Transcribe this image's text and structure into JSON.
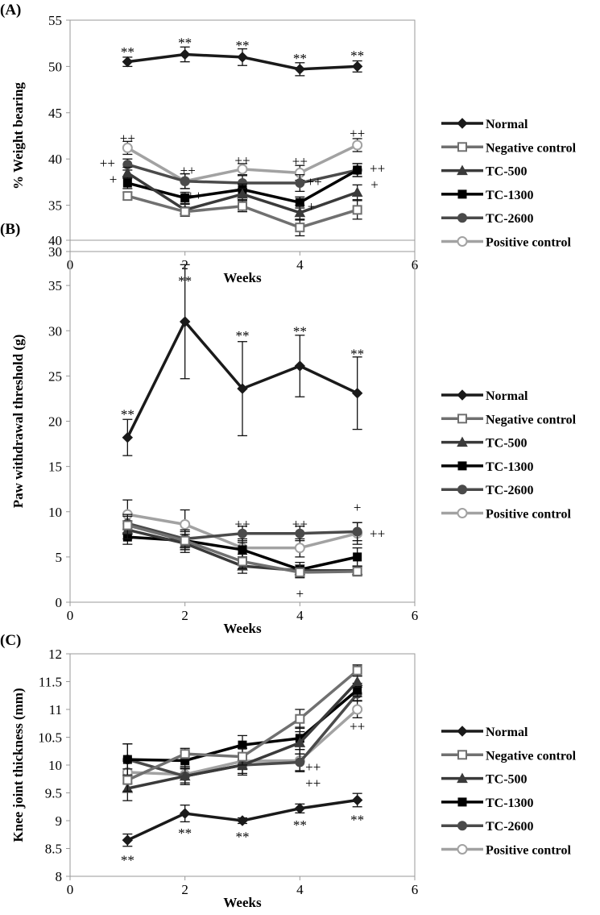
{
  "chart_data": [
    {
      "type": "line",
      "panel_label": "(A)",
      "xlabel": "Weeks",
      "ylabel": "% Weight bearing",
      "xlim": [
        0,
        6
      ],
      "xticks": [
        0,
        2,
        4,
        6
      ],
      "ylim": [
        30,
        55
      ],
      "yticks": [
        30,
        35,
        40,
        45,
        50,
        55
      ],
      "x": [
        1,
        2,
        3,
        4,
        5
      ],
      "legend_position": "right",
      "series": [
        {
          "name": "Normal",
          "values": [
            50.5,
            51.3,
            51.0,
            49.7,
            50.0
          ],
          "errors": [
            0.5,
            0.8,
            0.9,
            0.7,
            0.6
          ]
        },
        {
          "name": "Negative control",
          "values": [
            36.0,
            34.3,
            34.9,
            32.6,
            34.5
          ],
          "errors": [
            0.4,
            0.5,
            0.6,
            0.9,
            1.0
          ]
        },
        {
          "name": "TC-500",
          "values": [
            38.5,
            34.5,
            36.2,
            34.2,
            36.4
          ],
          "errors": [
            0.6,
            0.6,
            0.6,
            0.8,
            0.8
          ]
        },
        {
          "name": "TC-1300",
          "values": [
            37.4,
            35.8,
            36.7,
            35.3,
            38.8
          ],
          "errors": [
            0.6,
            0.6,
            0.6,
            0.6,
            0.7
          ]
        },
        {
          "name": "TC-2600",
          "values": [
            39.4,
            37.6,
            37.4,
            37.4,
            38.8
          ],
          "errors": [
            0.6,
            0.8,
            0.8,
            0.9,
            0.7
          ]
        },
        {
          "name": "Positive control",
          "values": [
            41.2,
            37.6,
            38.9,
            38.5,
            41.5
          ],
          "errors": [
            0.7,
            0.8,
            0.6,
            0.8,
            0.7
          ]
        }
      ],
      "annotations": [
        {
          "text": "**",
          "x": 1,
          "y": 51.6
        },
        {
          "text": "**",
          "x": 2,
          "y": 52.6
        },
        {
          "text": "**",
          "x": 3,
          "y": 52.3
        },
        {
          "text": "**",
          "x": 4,
          "y": 50.9
        },
        {
          "text": "**",
          "x": 5,
          "y": 51.2
        },
        {
          "text": "++",
          "x": 1,
          "y": 42.3
        },
        {
          "text": "++",
          "x": 0.65,
          "y": 39.6
        },
        {
          "text": "+",
          "x": 0.75,
          "y": 38.2
        },
        {
          "text": "++",
          "x": 2.05,
          "y": 38.8
        },
        {
          "text": "+++",
          "x": 2.1,
          "y": 36.1
        },
        {
          "text": "++",
          "x": 3,
          "y": 39.9
        },
        {
          "text": "++",
          "x": 4,
          "y": 39.8
        },
        {
          "text": "++",
          "x": 4.25,
          "y": 37.6
        },
        {
          "text": "+",
          "x": 4.2,
          "y": 34.9
        },
        {
          "text": "++",
          "x": 5,
          "y": 42.8
        },
        {
          "text": "++",
          "x": 5.35,
          "y": 39.0
        },
        {
          "text": "+",
          "x": 5.3,
          "y": 37.4
        }
      ]
    },
    {
      "type": "line",
      "panel_label": "(B)",
      "xlabel": "Weeks",
      "ylabel": "Paw withdrawal threshold (g)",
      "xlim": [
        0,
        6
      ],
      "xticks": [
        0,
        2,
        4,
        6
      ],
      "ylim": [
        0,
        40
      ],
      "yticks": [
        0,
        5,
        10,
        15,
        20,
        25,
        30,
        35,
        40
      ],
      "x": [
        1,
        2,
        3,
        4,
        5
      ],
      "legend_position": "right",
      "series": [
        {
          "name": "Normal",
          "values": [
            18.2,
            31.0,
            23.6,
            26.1,
            23.1
          ],
          "errors": [
            2.0,
            6.3,
            5.2,
            3.4,
            4.0
          ]
        },
        {
          "name": "Negative control",
          "values": [
            8.5,
            6.8,
            4.5,
            3.3,
            3.4
          ],
          "errors": [
            1.0,
            1.0,
            0.8,
            0.6,
            0.5
          ]
        },
        {
          "name": "TC-500",
          "values": [
            8.0,
            6.5,
            4.0,
            3.5,
            3.5
          ],
          "errors": [
            1.0,
            1.0,
            0.8,
            0.6,
            0.5
          ]
        },
        {
          "name": "TC-1300",
          "values": [
            7.2,
            6.8,
            5.8,
            3.6,
            5.0
          ],
          "errors": [
            0.8,
            1.0,
            0.8,
            0.8,
            1.0
          ]
        },
        {
          "name": "TC-2600",
          "values": [
            8.7,
            7.0,
            7.6,
            7.6,
            7.8
          ],
          "errors": [
            1.0,
            1.0,
            0.8,
            0.8,
            1.0
          ]
        },
        {
          "name": "Positive control",
          "values": [
            9.7,
            8.6,
            6.0,
            6.0,
            7.6
          ],
          "errors": [
            1.6,
            1.6,
            1.0,
            1.0,
            1.2
          ]
        }
      ],
      "annotations": [
        {
          "text": "**",
          "x": 1,
          "y": 20.8
        },
        {
          "text": "**",
          "x": 2,
          "y": 38.0
        },
        {
          "text": "**",
          "x": 3,
          "y": 29.5
        },
        {
          "text": "**",
          "x": 4,
          "y": 30.0
        },
        {
          "text": "**",
          "x": 5,
          "y": 27.5
        },
        {
          "text": "++",
          "x": 3,
          "y": 8.7
        },
        {
          "text": "++",
          "x": 4,
          "y": 8.7
        },
        {
          "text": "+",
          "x": 4,
          "y": 1.0
        },
        {
          "text": "+",
          "x": 5,
          "y": 10.5
        },
        {
          "text": "++",
          "x": 5.35,
          "y": 7.6
        }
      ]
    },
    {
      "type": "line",
      "panel_label": "(C)",
      "xlabel": "Weeks",
      "ylabel": "Knee joint thickness (mm)",
      "xlim": [
        0,
        6
      ],
      "xticks": [
        0,
        2,
        4,
        6
      ],
      "ylim": [
        8,
        12
      ],
      "yticks": [
        8,
        8.5,
        9,
        9.5,
        10,
        10.5,
        11,
        11.5,
        12
      ],
      "x": [
        1,
        2,
        3,
        4,
        5
      ],
      "legend_position": "right",
      "series": [
        {
          "name": "Normal",
          "values": [
            8.65,
            9.13,
            9.0,
            9.22,
            9.37
          ],
          "errors": [
            0.11,
            0.15,
            0.05,
            0.08,
            0.12
          ]
        },
        {
          "name": "Negative control",
          "values": [
            9.73,
            10.2,
            10.15,
            10.83,
            11.7
          ],
          "errors": [
            0.2,
            0.1,
            0.15,
            0.17,
            0.1
          ]
        },
        {
          "name": "TC-500",
          "values": [
            9.58,
            9.8,
            10.0,
            10.4,
            11.5
          ],
          "errors": [
            0.22,
            0.15,
            0.18,
            0.2,
            0.1
          ]
        },
        {
          "name": "TC-1300",
          "values": [
            10.1,
            10.08,
            10.36,
            10.48,
            11.35
          ],
          "errors": [
            0.28,
            0.15,
            0.17,
            0.2,
            0.12
          ]
        },
        {
          "name": "TC-2600",
          "values": [
            10.1,
            9.8,
            10.0,
            10.05,
            11.28
          ],
          "errors": [
            0.28,
            0.15,
            0.15,
            0.15,
            0.12
          ]
        },
        {
          "name": "Positive control",
          "values": [
            9.87,
            9.83,
            10.07,
            10.08,
            11.0
          ],
          "errors": [
            0.2,
            0.15,
            0.15,
            0.2,
            0.15
          ]
        }
      ],
      "annotations": [
        {
          "text": "**",
          "x": 1,
          "y": 8.3
        },
        {
          "text": "**",
          "x": 2,
          "y": 8.78
        },
        {
          "text": "**",
          "x": 3,
          "y": 8.72
        },
        {
          "text": "**",
          "x": 4,
          "y": 8.93
        },
        {
          "text": "**",
          "x": 5,
          "y": 9.02
        },
        {
          "text": "++",
          "x": 4.23,
          "y": 9.97
        },
        {
          "text": "++",
          "x": 4.23,
          "y": 9.76
        },
        {
          "text": "++",
          "x": 5,
          "y": 10.7
        }
      ]
    }
  ],
  "styles": {
    "Normal": {
      "color": "#1a1a1a",
      "marker": "diamond",
      "fill": true
    },
    "Negative control": {
      "color": "#707070",
      "marker": "square",
      "fill": false
    },
    "TC-500": {
      "color": "#3a3a3a",
      "marker": "triangle",
      "fill": true
    },
    "TC-1300": {
      "color": "#000000",
      "marker": "square",
      "fill": true
    },
    "TC-2600": {
      "color": "#4a4a4a",
      "marker": "circle",
      "fill": true
    },
    "Positive control": {
      "color": "#a2a2a2",
      "marker": "circle",
      "fill": false
    }
  }
}
